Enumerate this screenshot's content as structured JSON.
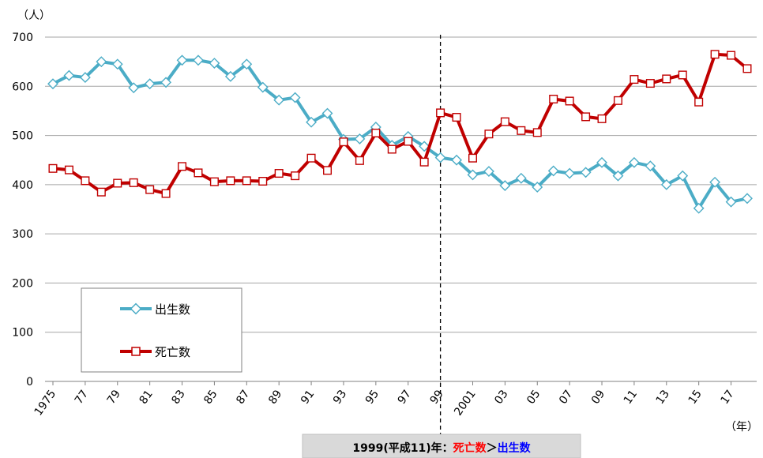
{
  "chart_data": {
    "type": "line",
    "ylabel": "（人）",
    "xlabel": "（年）",
    "ylim": [
      0,
      700
    ],
    "yticks": [
      "0",
      "100",
      "200",
      "300",
      "400",
      "500",
      "600",
      "700"
    ],
    "x": [
      1975,
      1976,
      1977,
      1978,
      1979,
      1980,
      1981,
      1982,
      1983,
      1984,
      1985,
      1986,
      1987,
      1988,
      1989,
      1990,
      1991,
      1992,
      1993,
      1994,
      1995,
      1996,
      1997,
      1998,
      1999,
      2000,
      2001,
      2002,
      2003,
      2004,
      2005,
      2006,
      2007,
      2008,
      2009,
      2010,
      2011,
      2012,
      2013,
      2014,
      2015,
      2016,
      2017,
      2018
    ],
    "xtick_labels": [
      {
        "year": 1975,
        "label": "1975"
      },
      {
        "year": 1977,
        "label": "77"
      },
      {
        "year": 1979,
        "label": "79"
      },
      {
        "year": 1981,
        "label": "81"
      },
      {
        "year": 1983,
        "label": "83"
      },
      {
        "year": 1985,
        "label": "85"
      },
      {
        "year": 1987,
        "label": "87"
      },
      {
        "year": 1989,
        "label": "89"
      },
      {
        "year": 1991,
        "label": "91"
      },
      {
        "year": 1993,
        "label": "93"
      },
      {
        "year": 1995,
        "label": "95"
      },
      {
        "year": 1997,
        "label": "97"
      },
      {
        "year": 1999,
        "label": "99"
      },
      {
        "year": 2001,
        "label": "2001"
      },
      {
        "year": 2003,
        "label": "03"
      },
      {
        "year": 2005,
        "label": "05"
      },
      {
        "year": 2007,
        "label": "07"
      },
      {
        "year": 2009,
        "label": "09"
      },
      {
        "year": 2011,
        "label": "11"
      },
      {
        "year": 2013,
        "label": "13"
      },
      {
        "year": 2015,
        "label": "15"
      },
      {
        "year": 2017,
        "label": "17"
      }
    ],
    "series": [
      {
        "name": "出生数",
        "color": "#4bacc6",
        "marker": "diamond",
        "values": [
          605,
          622,
          618,
          650,
          645,
          597,
          605,
          608,
          653,
          653,
          647,
          620,
          645,
          598,
          572,
          577,
          527,
          545,
          492,
          493,
          517,
          480,
          498,
          478,
          455,
          450,
          420,
          427,
          398,
          413,
          395,
          428,
          423,
          425,
          445,
          418,
          445,
          438,
          400,
          418,
          352,
          405,
          365,
          372
        ]
      },
      {
        "name": "死亡数",
        "color": "#c00000",
        "marker": "square",
        "values": [
          433,
          430,
          408,
          385,
          403,
          404,
          390,
          382,
          437,
          424,
          406,
          408,
          408,
          407,
          423,
          418,
          454,
          429,
          487,
          449,
          505,
          472,
          488,
          446,
          546,
          537,
          454,
          503,
          528,
          510,
          506,
          574,
          570,
          538,
          534,
          571,
          614,
          606,
          615,
          623,
          568,
          665,
          663,
          636
        ]
      }
    ],
    "reference_line": {
      "year": 1999,
      "style": "dashed"
    },
    "legend": {
      "placement": "bottom-left"
    },
    "grid": true,
    "annotation": {
      "prefix": "1999(平成11)年：",
      "death_label": "死亡数",
      "operator": "＞",
      "birth_label": "出生数",
      "death_color": "#ff0000",
      "birth_color": "#0000ff"
    }
  }
}
